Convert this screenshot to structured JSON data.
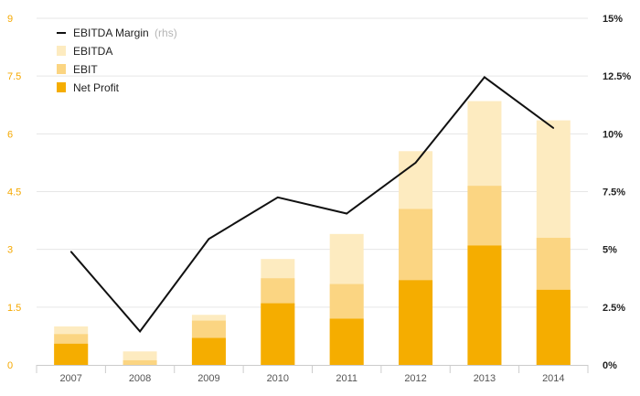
{
  "chart_data": {
    "type": "bar",
    "stacked_overlay": true,
    "categories": [
      "2007",
      "2008",
      "2009",
      "2010",
      "2011",
      "2012",
      "2013",
      "2014"
    ],
    "series": [
      {
        "name": "EBITDA",
        "kind": "bar",
        "axis": "left",
        "color": "#fdebc0",
        "values": [
          1.0,
          0.35,
          1.3,
          2.75,
          3.4,
          5.55,
          6.85,
          6.35
        ]
      },
      {
        "name": "EBIT",
        "kind": "bar",
        "axis": "left",
        "color": "#fbd582",
        "values": [
          0.8,
          0.12,
          1.15,
          2.25,
          2.1,
          4.05,
          4.65,
          3.3
        ]
      },
      {
        "name": "Net Profit",
        "kind": "bar",
        "axis": "left",
        "color": "#f5ad00",
        "values": [
          0.55,
          0.0,
          0.7,
          1.6,
          1.2,
          2.2,
          3.1,
          1.95
        ]
      },
      {
        "name": "EBITDA Margin",
        "kind": "line",
        "axis": "right",
        "color": "#111111",
        "values": [
          4.9,
          1.45,
          5.45,
          7.25,
          6.55,
          8.75,
          12.45,
          10.25
        ]
      }
    ],
    "legend_note": "(rhs)",
    "ylim_left": [
      0,
      9
    ],
    "yticks_left": [
      "0",
      "1.5",
      "3",
      "4.5",
      "6",
      "7.5",
      "9"
    ],
    "ytick_values_left": [
      0,
      1.5,
      3,
      4.5,
      6,
      7.5,
      9
    ],
    "ylim_right": [
      0,
      15
    ],
    "yticks_right": [
      "0%",
      "2.5%",
      "5%",
      "7.5%",
      "10%",
      "12.5%",
      "15%"
    ],
    "ytick_values_right": [
      0,
      2.5,
      5,
      7.5,
      10,
      12.5,
      15
    ],
    "grid": true,
    "legend_position": "top-left",
    "title": "",
    "xlabel": "",
    "ylabel": ""
  }
}
